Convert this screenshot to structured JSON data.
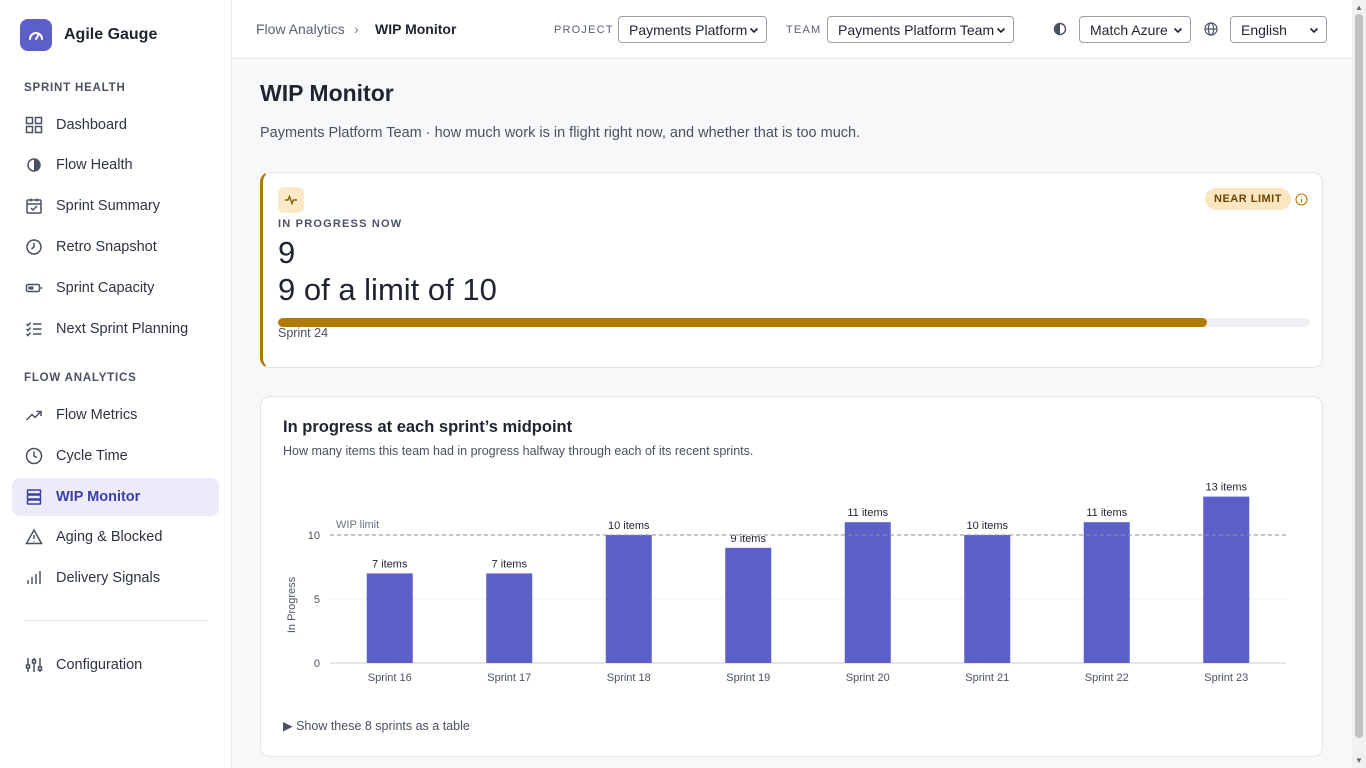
{
  "app": {
    "name": "Agile Gauge"
  },
  "sidebar": {
    "sections": [
      {
        "label": "SPRINT HEALTH"
      },
      {
        "label": "FLOW ANALYTICS"
      }
    ],
    "items": [
      {
        "label": "Dashboard",
        "icon": "grid-icon"
      },
      {
        "label": "Flow Health",
        "icon": "half-circle-icon"
      },
      {
        "label": "Sprint Summary",
        "icon": "calendar-check-icon"
      },
      {
        "label": "Retro Snapshot",
        "icon": "clock-icon"
      },
      {
        "label": "Sprint Capacity",
        "icon": "battery-icon"
      },
      {
        "label": "Next Sprint Planning",
        "icon": "checklist-icon"
      },
      {
        "label": "Flow Metrics",
        "icon": "trend-up-icon"
      },
      {
        "label": "Cycle Time",
        "icon": "clock-icon"
      },
      {
        "label": "WIP Monitor",
        "icon": "layers-icon",
        "active": true
      },
      {
        "label": "Aging & Blocked",
        "icon": "warning-icon"
      },
      {
        "label": "Delivery Signals",
        "icon": "bars-icon"
      },
      {
        "label": "Configuration",
        "icon": "sliders-icon"
      }
    ]
  },
  "topbar": {
    "breadcrumb_parent": "Flow Analytics",
    "breadcrumb_sep": "›",
    "breadcrumb_current": "WIP Monitor",
    "project_label": "PROJECT",
    "project_value": "Payments Platform",
    "team_label": "TEAM",
    "team_value": "Payments Platform Team",
    "theme_value": "Match Azure",
    "language_value": "English"
  },
  "page": {
    "title": "WIP Monitor",
    "subtitle": "Payments Platform Team · how much work is in flight right now, and whether that is too much."
  },
  "wip_card": {
    "kicker": "IN PROGRESS NOW",
    "value": "9",
    "text": "9 of a limit of 10",
    "status": "NEAR LIMIT",
    "progress_caption": "Sprint 24",
    "progress_fraction": 0.9,
    "accent_color": "#b07a00"
  },
  "chart_card": {
    "title": "In progress at each sprint’s midpoint",
    "subtitle": "How many items this team had in progress halfway through each of its recent sprints.",
    "table_toggle": "▶ Show these 8 sprints as a table"
  },
  "chart_data": {
    "type": "bar",
    "categories": [
      "Sprint 16",
      "Sprint 17",
      "Sprint 18",
      "Sprint 19",
      "Sprint 20",
      "Sprint 21",
      "Sprint 22",
      "Sprint 23"
    ],
    "values": [
      7,
      7,
      10,
      9,
      11,
      10,
      11,
      13
    ],
    "data_labels": [
      "7 items",
      "7 items",
      "10 items",
      "9 items",
      "11 items",
      "10 items",
      "11 items",
      "13 items"
    ],
    "ylabel": "In Progress",
    "yticks": [
      0,
      5,
      10
    ],
    "ylim": [
      0,
      13
    ],
    "reference_line": {
      "value": 10,
      "label": "WIP limit"
    },
    "bar_color": "#5b5fc7",
    "grid": true
  }
}
